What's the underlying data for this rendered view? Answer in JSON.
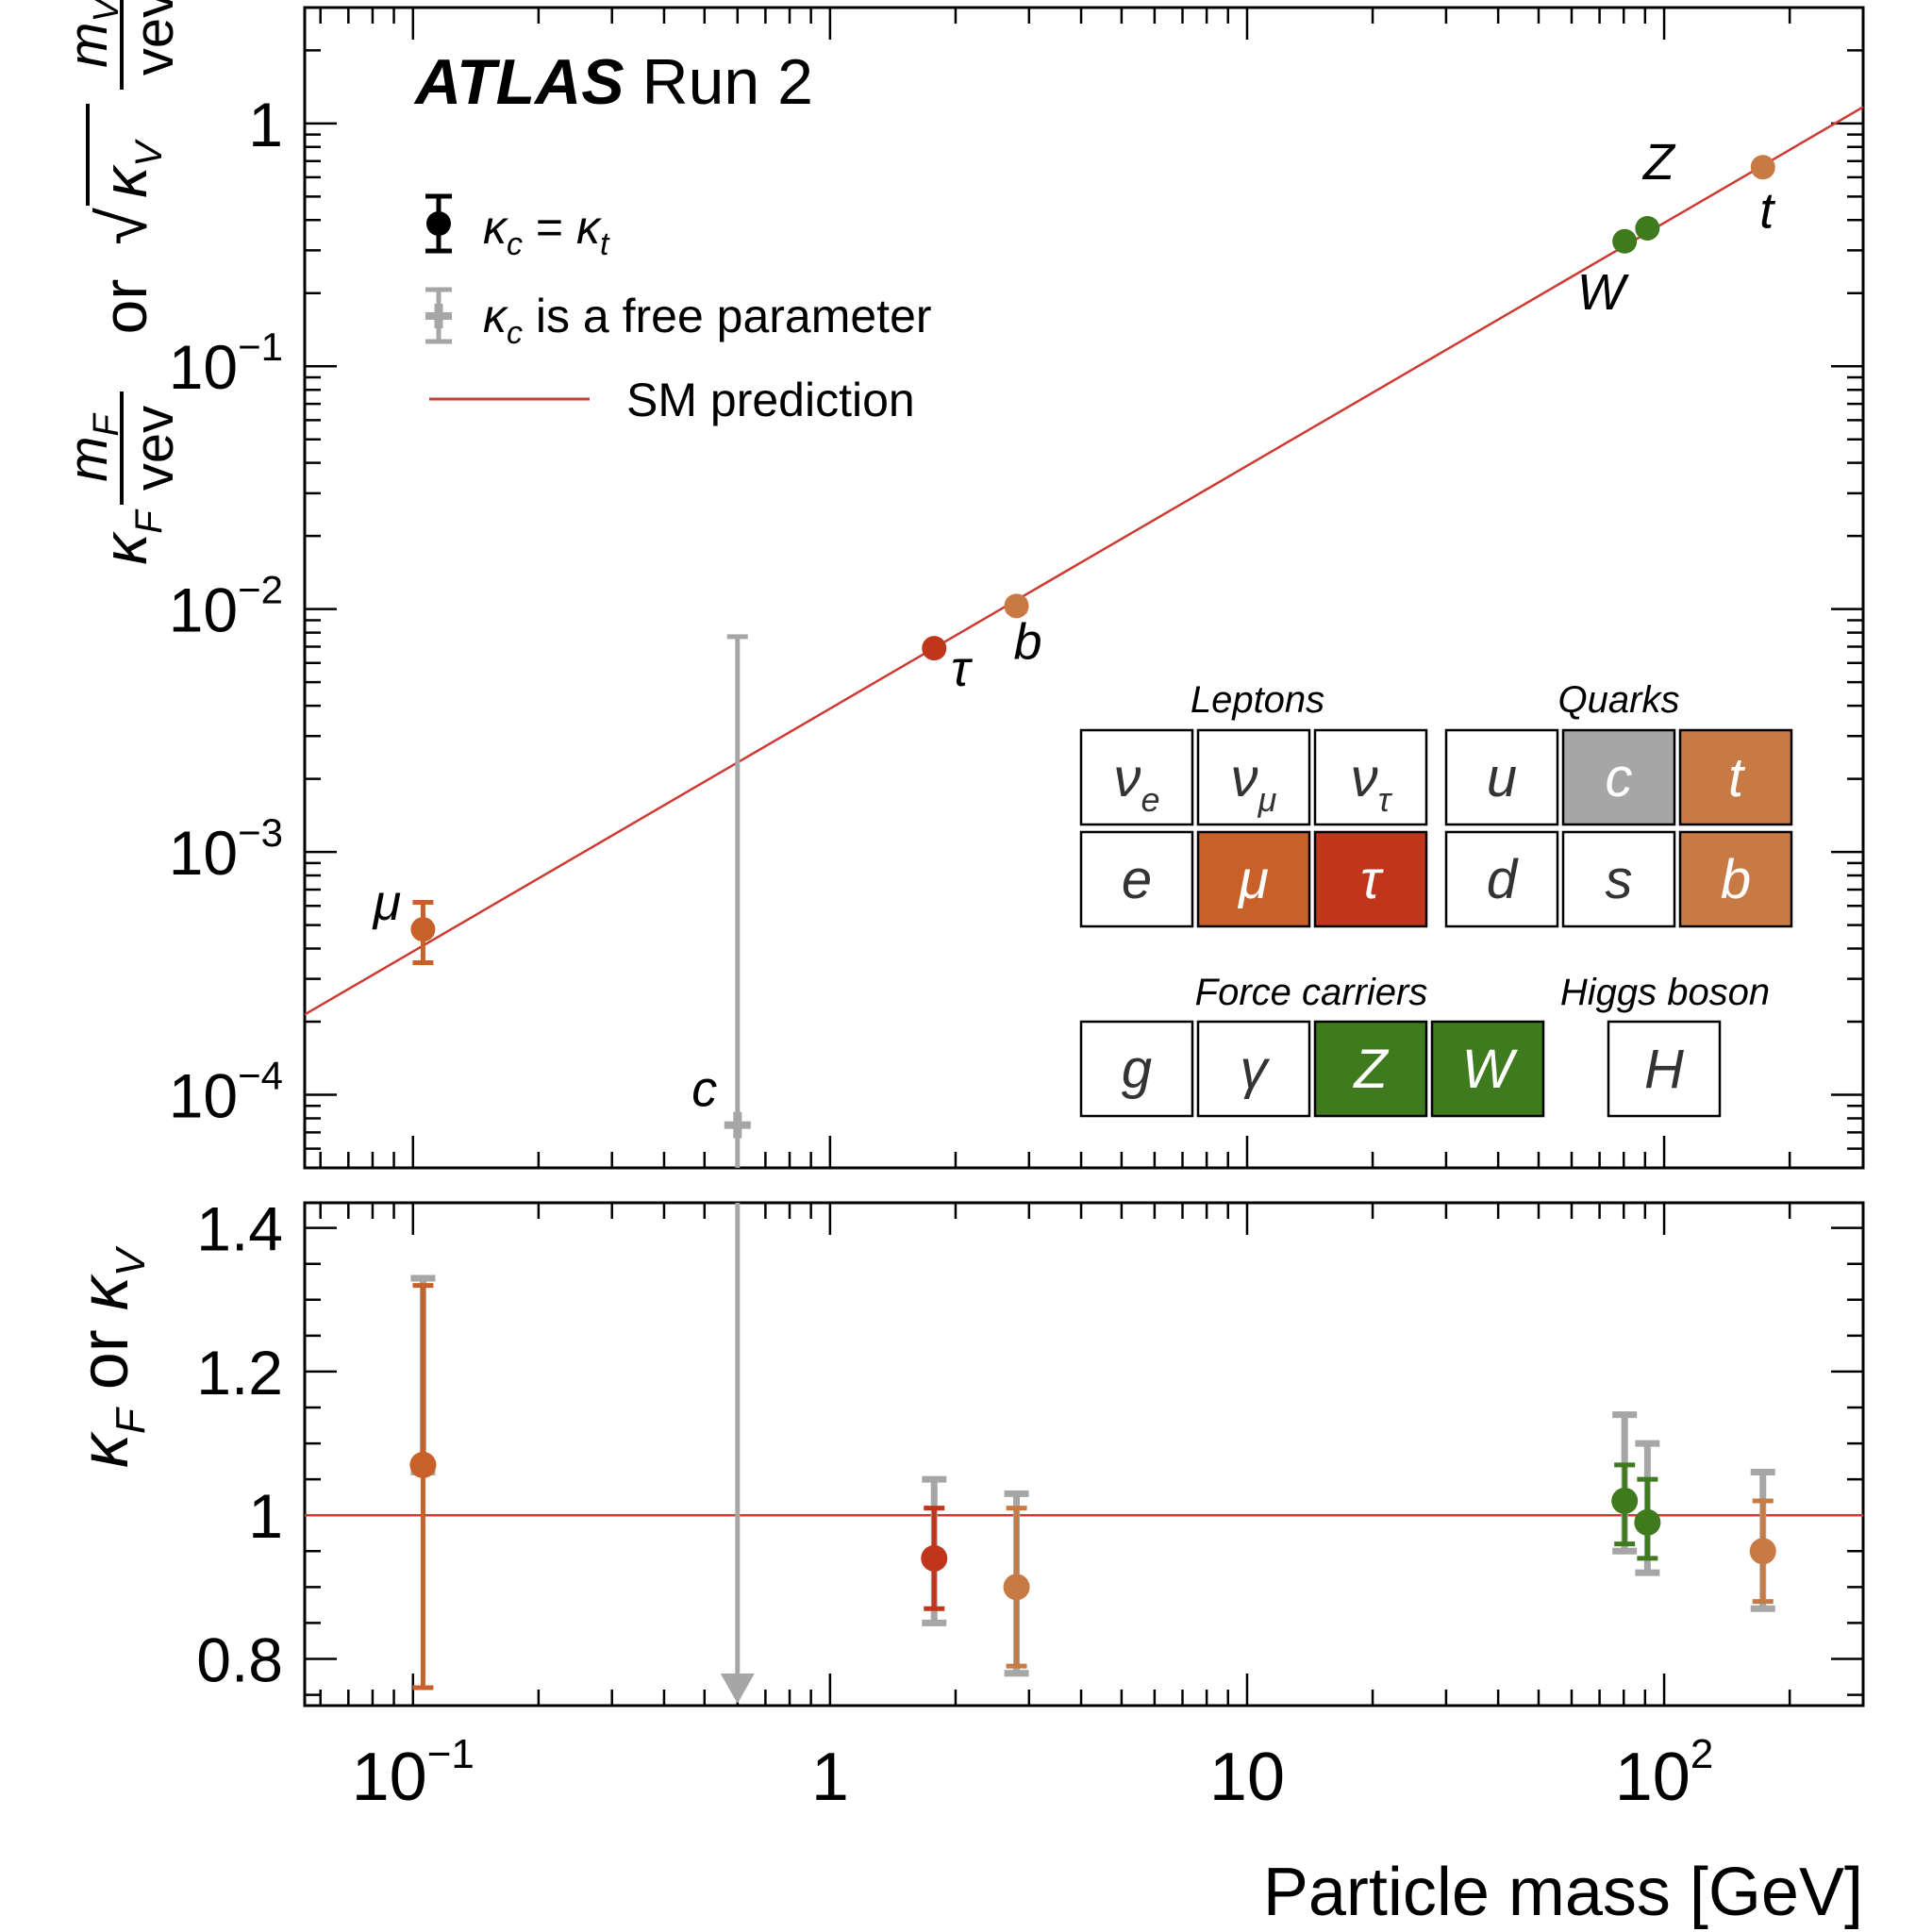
{
  "chart_data": {
    "type": "scatter",
    "title": "ATLAS Run 2",
    "title_bold": "ATLAS",
    "title_rest": "Run 2",
    "xlabel": "Particle mass [GeV]",
    "xscale": "log",
    "xlim": [
      0.055,
      300
    ],
    "xticks": [
      {
        "value": 0.1,
        "base": "10",
        "exp": "−1"
      },
      {
        "value": 1,
        "base": "1",
        "exp": ""
      },
      {
        "value": 10,
        "base": "10",
        "exp": ""
      },
      {
        "value": 100,
        "base": "10",
        "exp": "2"
      }
    ],
    "top_panel": {
      "ylabel_parts": [
        "κ",
        "F",
        "m",
        "F",
        "vev",
        " or ",
        "√",
        "κ",
        "V",
        "m",
        "V",
        "vev"
      ],
      "yscale": "log",
      "ylim": [
        5e-05,
        3
      ],
      "yticks": [
        {
          "value": 1,
          "base": "1",
          "exp": ""
        },
        {
          "value": 0.1,
          "base": "10",
          "exp": "−1"
        },
        {
          "value": 0.01,
          "base": "10",
          "exp": "−2"
        },
        {
          "value": 0.001,
          "base": "10",
          "exp": "−3"
        },
        {
          "value": 0.0001,
          "base": "10",
          "exp": "−4"
        }
      ],
      "sm_prediction": {
        "x": [
          0.055,
          300
        ],
        "y": [
          0.000214,
          1.168
        ]
      },
      "points": [
        {
          "label": "μ",
          "mass": 0.1057,
          "y": 0.00048,
          "err_lo": 0.00035,
          "err_hi": 0.00062,
          "color": "#c8602a"
        },
        {
          "label": "τ",
          "mass": 1.777,
          "y": 0.0069,
          "err_lo": 0.0066,
          "err_hi": 0.0072,
          "color": "#c0361d"
        },
        {
          "label": "b",
          "mass": 2.8,
          "y": 0.0103,
          "err_lo": 0.0098,
          "err_hi": 0.0108,
          "color": "#c87a45"
        },
        {
          "label": "W",
          "mass": 80.4,
          "y": 0.327,
          "err_lo": 0.322,
          "err_hi": 0.332,
          "color": "#3f7a1e"
        },
        {
          "label": "Z",
          "mass": 91.19,
          "y": 0.37,
          "err_lo": 0.365,
          "err_hi": 0.375,
          "color": "#3f7a1e"
        },
        {
          "label": "t",
          "mass": 172.5,
          "y": 0.66,
          "err_lo": 0.65,
          "err_hi": 0.67,
          "color": "#c87a45"
        }
      ],
      "charm": {
        "label": "c",
        "mass": 0.6,
        "y": 7.5e-05,
        "err_lo": 5.5e-05,
        "err_hi": 0.0077,
        "color": "#a6a6a6"
      }
    },
    "bottom_panel": {
      "ylabel_parts": [
        "κ",
        "F",
        " or ",
        "κ",
        "V"
      ],
      "ylim": [
        0.735,
        1.435
      ],
      "yticks": [
        {
          "value": 0.8,
          "label": "0.8"
        },
        {
          "value": 1.0,
          "label": "1"
        },
        {
          "value": 1.2,
          "label": "1.2"
        },
        {
          "value": 1.4,
          "label": "1.4"
        }
      ],
      "sm_prediction": 1.0,
      "points": [
        {
          "label": "μ",
          "mass": 0.1057,
          "y": 1.07,
          "err_lo": 0.76,
          "err_hi": 1.32,
          "gray_lo": 1.06,
          "gray_hi": 1.33,
          "color": "#c8602a"
        },
        {
          "label": "τ",
          "mass": 1.777,
          "y": 0.94,
          "err_lo": 0.87,
          "err_hi": 1.01,
          "gray_lo": 0.85,
          "gray_hi": 1.05,
          "color": "#c0361d"
        },
        {
          "label": "b",
          "mass": 2.8,
          "y": 0.9,
          "err_lo": 0.79,
          "err_hi": 1.01,
          "gray_lo": 0.78,
          "gray_hi": 1.03,
          "color": "#c87a45"
        },
        {
          "label": "W",
          "mass": 80.4,
          "y": 1.02,
          "err_lo": 0.96,
          "err_hi": 1.07,
          "gray_lo": 0.95,
          "gray_hi": 1.14,
          "color": "#3f7a1e"
        },
        {
          "label": "Z",
          "mass": 91.19,
          "y": 0.99,
          "err_lo": 0.94,
          "err_hi": 1.05,
          "gray_lo": 0.92,
          "gray_hi": 1.1,
          "color": "#3f7a1e"
        },
        {
          "label": "t",
          "mass": 172.5,
          "y": 0.95,
          "err_lo": 0.88,
          "err_hi": 1.02,
          "gray_lo": 0.87,
          "gray_hi": 1.06,
          "color": "#c87a45"
        }
      ],
      "charm_upper_limit": {
        "mass": 0.6,
        "arrow": "down",
        "color": "#a6a6a6"
      }
    },
    "legend": {
      "position": "top-left",
      "entries": [
        {
          "marker": "black-point",
          "parts": [
            "κ",
            "c",
            " = ",
            "κ",
            "t"
          ]
        },
        {
          "marker": "gray-cross",
          "parts": [
            "κ",
            "c",
            " is a free parameter"
          ]
        },
        {
          "marker": "red-line",
          "text": "SM prediction"
        }
      ]
    },
    "particle_table": {
      "position": "lower-right",
      "headers": {
        "leptons": "Leptons",
        "quarks": "Quarks",
        "force": "Force carriers",
        "higgs": "Higgs boson"
      },
      "leptons": [
        {
          "sym": "ν",
          "sub": "e",
          "fill": "#ffffff"
        },
        {
          "sym": "ν",
          "sub": "μ",
          "fill": "#ffffff"
        },
        {
          "sym": "ν",
          "sub": "τ",
          "fill": "#ffffff"
        },
        {
          "sym": "e",
          "sub": "",
          "fill": "#ffffff"
        },
        {
          "sym": "μ",
          "sub": "",
          "fill": "#c8602a"
        },
        {
          "sym": "τ",
          "sub": "",
          "fill": "#c0361d"
        }
      ],
      "quarks": [
        {
          "sym": "u",
          "sub": "",
          "fill": "#ffffff"
        },
        {
          "sym": "c",
          "sub": "",
          "fill": "#a6a6a6"
        },
        {
          "sym": "t",
          "sub": "",
          "fill": "#c87a45"
        },
        {
          "sym": "d",
          "sub": "",
          "fill": "#ffffff"
        },
        {
          "sym": "s",
          "sub": "",
          "fill": "#ffffff"
        },
        {
          "sym": "b",
          "sub": "",
          "fill": "#c87a45"
        }
      ],
      "force": [
        {
          "sym": "g",
          "sub": "",
          "fill": "#ffffff"
        },
        {
          "sym": "γ",
          "sub": "",
          "fill": "#ffffff"
        },
        {
          "sym": "Z",
          "sub": "",
          "fill": "#3f7a1e"
        },
        {
          "sym": "W",
          "sub": "",
          "fill": "#3f7a1e"
        }
      ],
      "higgs": [
        {
          "sym": "H",
          "sub": "",
          "fill": "#ffffff"
        }
      ]
    },
    "colors": {
      "sm_line": "#d03a35",
      "gray": "#a6a6a6",
      "axis": "#000000"
    }
  }
}
